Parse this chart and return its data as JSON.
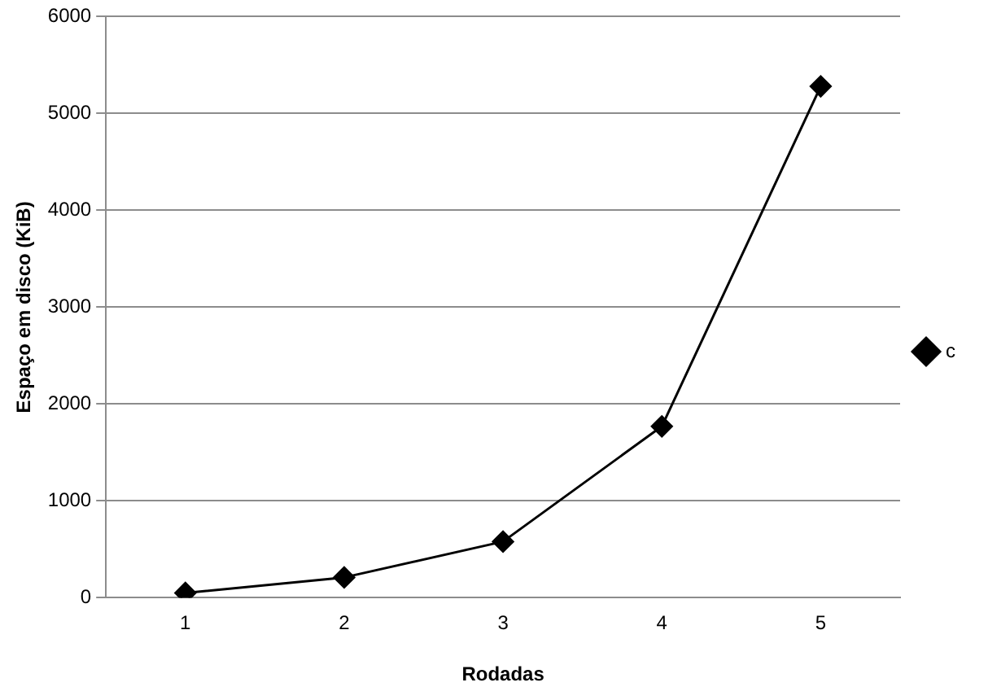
{
  "chart_data": {
    "type": "line",
    "xlabel": "Rodadas",
    "ylabel": "Espaço em disco (KiB)",
    "categories": [
      "1",
      "2",
      "3",
      "4",
      "5"
    ],
    "series": [
      {
        "name": "c",
        "color": "#000000",
        "values": [
          50,
          210,
          580,
          1770,
          5280
        ]
      }
    ],
    "ylim": [
      0,
      6000
    ],
    "yticks": [
      0,
      1000,
      2000,
      3000,
      4000,
      5000,
      6000
    ],
    "grid": "y",
    "legend": "right",
    "marker": "diamond",
    "line_style": "solid"
  }
}
